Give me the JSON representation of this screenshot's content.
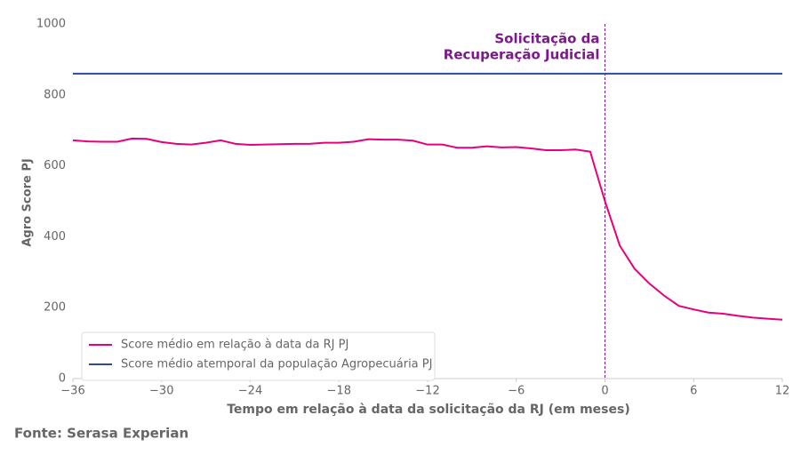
{
  "chart_data": {
    "type": "line",
    "xlabel": "Tempo em relação à data da solicitação da RJ (em meses)",
    "ylabel": "Agro Score PJ",
    "source": "Fonte: Serasa Experian",
    "annotation": [
      "Solicitação da",
      "Recuperação Judicial"
    ],
    "annotation_color": "#7b1a8a",
    "vline": 0,
    "legend": "lower left",
    "grid": false,
    "xlim": [
      -36,
      12
    ],
    "ylim": [
      0,
      1000
    ],
    "xticks": [
      {
        "value": -36,
        "label": "−36"
      },
      {
        "value": -30,
        "label": "−30"
      },
      {
        "value": -24,
        "label": "−24"
      },
      {
        "value": -18,
        "label": "−18"
      },
      {
        "value": -12,
        "label": "−12"
      },
      {
        "value": -6,
        "label": "−6"
      },
      0,
      6,
      12
    ],
    "yticks": [
      0,
      200,
      400,
      600,
      800,
      1000
    ],
    "series": [
      {
        "name": "Score médio em relação à data da RJ PJ",
        "color": "#e6007e",
        "x": [
          -36,
          -35,
          -34,
          -33,
          -32,
          -31,
          -30,
          -29,
          -28,
          -27,
          -26,
          -25,
          -24,
          -23,
          -22,
          -21,
          -20,
          -19,
          -18,
          -17,
          -16,
          -15,
          -14,
          -13,
          -12,
          -11,
          -10,
          -9,
          -8,
          -7,
          -6,
          -5,
          -4,
          -3,
          -2,
          -1,
          0,
          1,
          2,
          3,
          4,
          5,
          6,
          7,
          8,
          9,
          10,
          11,
          12
        ],
        "values": [
          672,
          669,
          668,
          668,
          677,
          676,
          667,
          662,
          660,
          665,
          672,
          662,
          659,
          660,
          661,
          662,
          662,
          665,
          665,
          668,
          675,
          674,
          674,
          671,
          660,
          660,
          651,
          651,
          655,
          652,
          653,
          649,
          644,
          644,
          646,
          640,
          500,
          375,
          310,
          268,
          234,
          205,
          195,
          186,
          183,
          177,
          172,
          169,
          166
        ]
      },
      {
        "name": "Score médio atemporal da população Agropecuária PJ",
        "color": "#2e4a9e",
        "x": [
          -36,
          12
        ],
        "values": [
          860,
          860
        ]
      }
    ]
  }
}
